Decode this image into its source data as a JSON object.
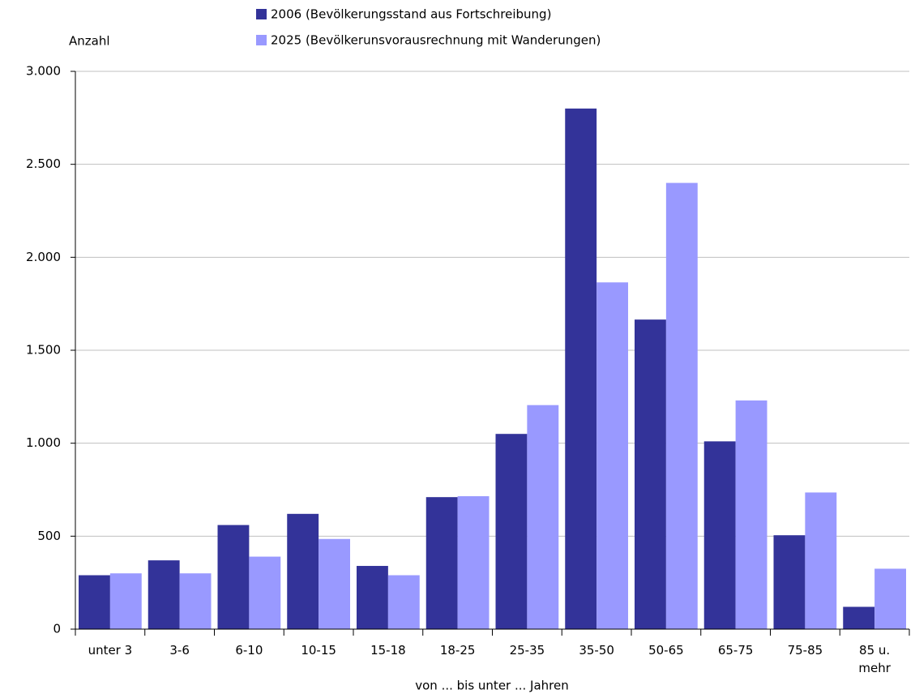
{
  "chart_data": {
    "type": "bar",
    "y_label": "Anzahl",
    "x_label": "von ... bis unter ... Jahren",
    "categories": [
      "unter 3",
      "3-6",
      "6-10",
      "10-15",
      "15-18",
      "18-25",
      "25-35",
      "35-50",
      "50-65",
      "65-75",
      "75-85",
      "85 u. mehr"
    ],
    "series": [
      {
        "name": "2006 (Bevölkerungsstand aus Fortschreibung)",
        "color": "#333399",
        "values": [
          290,
          370,
          560,
          620,
          340,
          710,
          1050,
          2800,
          1665,
          1010,
          505,
          120
        ]
      },
      {
        "name": "2025 (Bevölkerunsvorausrechnung mit Wanderungen)",
        "color": "#9999ff",
        "values": [
          300,
          300,
          390,
          485,
          290,
          715,
          1205,
          1865,
          2400,
          1230,
          735,
          325
        ]
      }
    ],
    "ylim": [
      0,
      3000
    ],
    "yticks": [
      0,
      500,
      {
        "value": 1000,
        "label": "1.000"
      },
      {
        "value": 1500,
        "label": "1.500"
      },
      {
        "value": 2000,
        "label": "2.000"
      },
      {
        "value": 2500,
        "label": "2.500"
      },
      {
        "value": 3000,
        "label": "3.000"
      }
    ],
    "grid": true,
    "legend": "top"
  }
}
